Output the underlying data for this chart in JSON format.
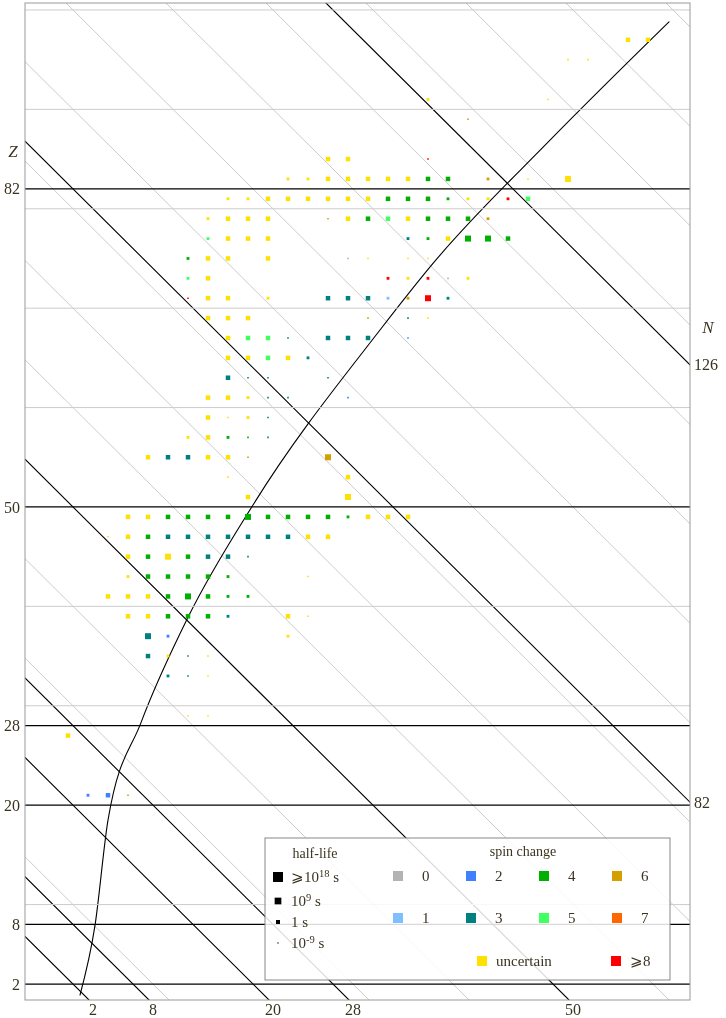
{
  "chart_data": {
    "type": "bubble",
    "marker": "square",
    "ylabel": "Z",
    "legend": "bottom right",
    "legend_title": "spin change",
    "grid": "y",
    "xlim": [
      -4.8,
      61.7
    ],
    "ylim": [
      0.4,
      100.7
    ],
    "xticks": [
      2,
      8,
      20,
      28,
      50
    ],
    "yticks": [
      2,
      8,
      {
        "value": 10,
        "label": null
      },
      20,
      28,
      {
        "value": 30,
        "label": null
      },
      {
        "value": 40,
        "label": null
      },
      50,
      {
        "value": 60,
        "label": null
      },
      {
        "value": 70,
        "label": null
      },
      {
        "value": 80,
        "label": null
      },
      82,
      {
        "value": 90,
        "label": null
      },
      {
        "value": 100,
        "label": null
      }
    ],
    "annotations": [
      {
        "text": "126",
        "x": 61.7,
        "y": 64.3
      },
      {
        "text": "82",
        "x": 61.7,
        "y": 20.3
      },
      "N",
      "half-life",
      "⩾10$^{18}$ s",
      "10$^{9}$ s",
      "1 s",
      "10$^{-9}$ s"
    ],
    "series": [
      {
        "type": "line",
        "marker": "none",
        "color": "#cccccc",
        "x": [
          -4.8,
          9.6
        ],
        "values": [
          14.8,
          0.4
        ]
      },
      {
        "type": "line",
        "marker": "none",
        "color": "#cccccc",
        "x": [
          -4.8,
          29.6
        ],
        "values": [
          34.8,
          0.4
        ]
      },
      {
        "type": "line",
        "marker": "none",
        "color": "#cccccc",
        "x": [
          -4.8,
          39.6
        ],
        "values": [
          44.8,
          0.4
        ]
      },
      {
        "type": "line",
        "marker": "none",
        "color": "#cccccc",
        "x": [
          -4.8,
          59.6
        ],
        "values": [
          64.8,
          0.4
        ]
      },
      {
        "type": "line",
        "marker": "none",
        "color": "#cccccc",
        "x": [
          -4.8,
          61.7
        ],
        "values": [
          74.8,
          8.3
        ]
      },
      {
        "type": "line",
        "marker": "none",
        "color": "#cccccc",
        "x": [
          -4.8,
          61.7
        ],
        "values": [
          84.8,
          18.3
        ]
      },
      {
        "type": "line",
        "marker": "none",
        "color": "#cccccc",
        "x": [
          -4.8,
          61.7
        ],
        "values": [
          94.8,
          28.3
        ]
      },
      {
        "type": "line",
        "marker": "none",
        "color": "#cccccc",
        "x": [
          -0.7,
          61.7
        ],
        "values": [
          100.7,
          38.3
        ]
      },
      {
        "type": "line",
        "marker": "none",
        "color": "#cccccc",
        "x": [
          9.3,
          61.7
        ],
        "values": [
          100.7,
          48.3
        ]
      },
      {
        "type": "line",
        "marker": "none",
        "color": "#cccccc",
        "x": [
          19.3,
          61.7
        ],
        "values": [
          100.7,
          58.3
        ]
      },
      {
        "type": "line",
        "marker": "none",
        "color": "#cccccc",
        "x": [
          29.3,
          61.7
        ],
        "values": [
          100.7,
          68.3
        ]
      },
      {
        "type": "line",
        "marker": "none",
        "color": "#cccccc",
        "x": [
          39.3,
          61.7
        ],
        "values": [
          100.7,
          78.3
        ]
      },
      {
        "type": "line",
        "marker": "none",
        "color": "#cccccc",
        "x": [
          49.3,
          61.7
        ],
        "values": [
          100.7,
          88.3
        ]
      },
      {
        "type": "line",
        "marker": "none",
        "color": "#cccccc",
        "x": [
          59.3,
          61.7
        ],
        "values": [
          100.7,
          98.3
        ]
      },
      {
        "type": "line",
        "marker": "none",
        "color": "#000000",
        "x": [
          -4.8,
          1.6
        ],
        "values": [
          6.8,
          0.4
        ]
      },
      {
        "type": "line",
        "marker": "none",
        "color": "#000000",
        "x": [
          -4.8,
          7.6
        ],
        "values": [
          12.8,
          0.4
        ]
      },
      {
        "type": "line",
        "marker": "none",
        "color": "#000000",
        "x": [
          -4.8,
          19.6
        ],
        "values": [
          24.8,
          0.4
        ]
      },
      {
        "type": "line",
        "marker": "none",
        "color": "#000000",
        "x": [
          -4.8,
          27.6
        ],
        "values": [
          32.8,
          0.4
        ]
      },
      {
        "type": "line",
        "marker": "none",
        "color": "#000000",
        "x": [
          -4.8,
          49.6
        ],
        "values": [
          54.8,
          0.4
        ]
      },
      {
        "type": "line",
        "marker": "none",
        "color": "#000000",
        "x": [
          -4.8,
          61.7
        ],
        "values": [
          86.8,
          20.3
        ]
      },
      {
        "type": "line",
        "marker": "none",
        "color": "#000000",
        "x": [
          25.3,
          61.7
        ],
        "values": [
          100.7,
          64.3
        ]
      },
      {
        "type": "line",
        "marker": "none",
        "color": "#000000",
        "x": [
          0.7,
          2.2,
          3.5,
          6.8,
          11.5,
          18,
          30.7,
          36,
          47.7,
          59.6
        ],
        "values": [
          0.9,
          7.9,
          18.5,
          28.3,
          38.9,
          50.2,
          67.8,
          74.5,
          86.9,
          98.8
        ]
      },
      {
        "name": "0",
        "color": "#b3b3b3",
        "x": [
          27.5
        ],
        "values": [
          75
        ],
        "sizes": [
          0.07
        ]
      },
      {
        "name": "1",
        "color": "#80bfff",
        "x": [
          37.5,
          31.5
        ],
        "values": [
          73,
          71
        ],
        "sizes": [
          0.07,
          0.22
        ]
      },
      {
        "name": "2",
        "color": "#4080ff",
        "x": [
          9.5,
          27.5,
          1.5,
          3.5,
          33.5
        ],
        "values": [
          37,
          61,
          21,
          21,
          67
        ],
        "sizes": [
          0.22,
          0.07,
          0.22,
          0.56,
          0.07
        ]
      },
      {
        "name": "3",
        "color": "#008080",
        "x": [
          9.5,
          11.5,
          13.5,
          15.5,
          17.5,
          19.5,
          21.5,
          13.5,
          15.5,
          17.5,
          15.5,
          7.5,
          7.5,
          11.5,
          9.5,
          11.5,
          9.5,
          11.5,
          19.5,
          19.5,
          19.5,
          21.5,
          15.5,
          17.5,
          19.5,
          25.5,
          23.5,
          21.5,
          25.5,
          27.5,
          29.5,
          33.5,
          25.5,
          27.5,
          29.5,
          37.5,
          33.5
        ],
        "values": [
          47,
          47,
          47,
          47,
          47,
          47,
          47,
          45,
          45,
          45,
          39,
          37,
          35,
          35,
          33,
          33,
          55,
          55,
          57,
          59,
          61,
          61,
          63,
          63,
          63,
          63,
          65,
          67,
          67,
          67,
          67,
          69,
          71,
          71,
          71,
          71,
          77
        ],
        "sizes": [
          0.56,
          0.56,
          0.56,
          0.56,
          0.56,
          0.56,
          0.56,
          0.56,
          0.56,
          0.07,
          0.22,
          1,
          0.56,
          0.07,
          0.22,
          0.07,
          0.56,
          0.56,
          0.07,
          0.07,
          0.07,
          0.07,
          0.56,
          0.07,
          0.07,
          0.07,
          0.22,
          0.07,
          0.56,
          0.56,
          0.56,
          0.07,
          0.56,
          0.56,
          0.56,
          0.22,
          0.22
        ]
      },
      {
        "name": "4",
        "color": "#00b000",
        "x": [
          9.5,
          11.5,
          13.5,
          15.5,
          17.5,
          19.5,
          21.5,
          23.5,
          25.5,
          27.5,
          7.5,
          7.5,
          11.5,
          7.5,
          9.5,
          11.5,
          13.5,
          15.5,
          9.5,
          11.5,
          13.5,
          15.5,
          17.5,
          9.5,
          11.5,
          13.5,
          15.5,
          17.5,
          11.5,
          35.5,
          39.5,
          41.5,
          43.5,
          29.5,
          35.5,
          37.5,
          39.5,
          31.5,
          33.5,
          35.5,
          37.5,
          35.5,
          37.5
        ],
        "values": [
          49,
          49,
          49,
          49,
          49,
          49,
          49,
          49,
          49,
          49,
          47,
          45,
          45,
          43,
          43,
          43,
          43,
          43,
          41,
          41,
          41,
          41,
          41,
          39,
          39,
          39,
          57,
          57,
          75,
          77,
          77,
          77,
          77,
          79,
          79,
          79,
          79,
          81,
          81,
          81,
          81,
          83,
          83
        ],
        "sizes": [
          0.56,
          0.56,
          0.56,
          0.56,
          1,
          0.56,
          0.56,
          0.56,
          0.56,
          0.22,
          0.56,
          0.56,
          0.56,
          0.56,
          0.56,
          0.56,
          0.56,
          0.22,
          0.56,
          1,
          0.56,
          0.22,
          0.22,
          0.56,
          0.56,
          0.56,
          0.22,
          0.07,
          0.22,
          0.22,
          1,
          1,
          0.56,
          0.56,
          0.56,
          0.56,
          0.56,
          0.56,
          0.56,
          0.56,
          0.22,
          0.56,
          0.56
        ]
      },
      {
        "name": "5",
        "color": "#40ff60",
        "x": [
          17.5,
          19.5,
          19.5,
          11.5,
          13.5,
          31.5,
          45.5
        ],
        "values": [
          67,
          67,
          65,
          73,
          77,
          79,
          81
        ],
        "sizes": [
          0.56,
          0.56,
          0.56,
          0.22,
          0.22,
          0.56,
          0.56
        ]
      },
      {
        "name": "6",
        "color": "#d4a000",
        "x": [
          5.5,
          17.5,
          25.5,
          25.5,
          41.5,
          33.5,
          29.5,
          41.5,
          39.5
        ],
        "values": [
          21,
          55,
          55,
          79,
          79,
          71,
          69,
          83,
          89
        ],
        "sizes": [
          0.07,
          0.07,
          1,
          0.07,
          0.22,
          0.22,
          0.07,
          0.22,
          0.07
        ]
      },
      {
        "name": "7",
        "color": "#ff6600"
      },
      {
        "name": "uncertain",
        "color": "#ffe000",
        "x": [
          5.5,
          7.5,
          29.5,
          31.5,
          33.5,
          3.5,
          5.5,
          23.5,
          25.5,
          5.5,
          9.5,
          5.5,
          23.5,
          3.5,
          5.5,
          7.5,
          5.5,
          7.5,
          21.5,
          23.5,
          21.5,
          9.5,
          13.5,
          13.5,
          11.5,
          13.5,
          -0.5,
          17.5,
          27.5,
          15.5,
          27.5,
          7.5,
          13.5,
          15.5,
          11.5,
          13.5,
          13.5,
          15.5,
          17.5,
          13.5,
          15.5,
          17.5,
          15.5,
          17.5,
          21.5,
          15.5,
          13.5,
          15.5,
          17.5,
          35.5,
          13.5,
          15.5,
          19.5,
          13.5,
          33.5,
          39.5,
          13.5,
          15.5,
          19.5,
          29.5,
          33.5,
          35.5,
          15.5,
          17.5,
          19.5,
          37.5,
          13.5,
          15.5,
          17.5,
          19.5,
          27.5,
          33.5,
          15.5,
          17.5,
          19.5,
          21.5,
          23.5,
          25.5,
          27.5,
          29.5,
          39.5,
          41.5,
          21.5,
          23.5,
          25.5,
          27.5,
          29.5,
          31.5,
          33.5,
          45.5,
          49.5,
          25.5,
          27.5,
          35.5,
          47.5,
          49.5,
          51.5,
          55.5,
          57.5
        ],
        "values": [
          49,
          49,
          49,
          49,
          49,
          47,
          47,
          47,
          47,
          45,
          45,
          43,
          43,
          41,
          41,
          41,
          39,
          39,
          39,
          39,
          37,
          35,
          35,
          33,
          29,
          29,
          27,
          51,
          51,
          53,
          53,
          55,
          55,
          55,
          57,
          57,
          59,
          59,
          59,
          61,
          61,
          61,
          65,
          65,
          65,
          67,
          69,
          69,
          69,
          69,
          71,
          71,
          71,
          73,
          73,
          73,
          75,
          75,
          75,
          75,
          75,
          75,
          77,
          77,
          77,
          77,
          79,
          79,
          79,
          79,
          79,
          79,
          81,
          81,
          81,
          81,
          81,
          81,
          81,
          81,
          81,
          81,
          83,
          83,
          83,
          83,
          83,
          83,
          83,
          83,
          83,
          85,
          85,
          91,
          91,
          95,
          95,
          97,
          97
        ],
        "sizes": [
          0.56,
          0.56,
          0.56,
          0.56,
          0.56,
          0.07,
          0.56,
          0.56,
          0.56,
          0.56,
          1,
          0.22,
          0.07,
          0.56,
          0.56,
          0.56,
          0.56,
          0.56,
          0.56,
          0.07,
          0.22,
          0.22,
          0.07,
          0.07,
          0.07,
          0.07,
          0.56,
          0.56,
          1,
          0.07,
          0.56,
          0.56,
          0.56,
          0.56,
          0.22,
          0.56,
          0.56,
          0.07,
          0.22,
          0.56,
          0.56,
          0.22,
          0.56,
          0.56,
          0.56,
          0.56,
          0.56,
          0.56,
          0.56,
          0.07,
          0.56,
          0.56,
          0.22,
          0.56,
          0.22,
          0.22,
          0.56,
          0.56,
          0.56,
          0.07,
          0.07,
          0.07,
          0.56,
          0.56,
          0.56,
          0.56,
          0.22,
          0.56,
          0.56,
          0.56,
          0.56,
          0.56,
          0.22,
          0.22,
          0.56,
          0.56,
          0.56,
          0.56,
          0.56,
          0.56,
          0.22,
          0.22,
          0.22,
          0.22,
          0.56,
          0.56,
          0.56,
          0.56,
          0.56,
          0.07,
          1,
          0.56,
          0.56,
          0.22,
          0.07,
          0.07,
          0.07,
          0.56,
          0.56
        ]
      },
      {
        "name": "⩾8",
        "color": "#ff0000",
        "x": [
          35.5,
          43.5,
          31.5,
          35.5,
          11.5,
          35.5
        ],
        "values": [
          85,
          81,
          73,
          73,
          71,
          71
        ],
        "sizes": [
          0.07,
          0.22,
          0.22,
          0.22,
          0.07,
          1
        ]
      }
    ]
  }
}
